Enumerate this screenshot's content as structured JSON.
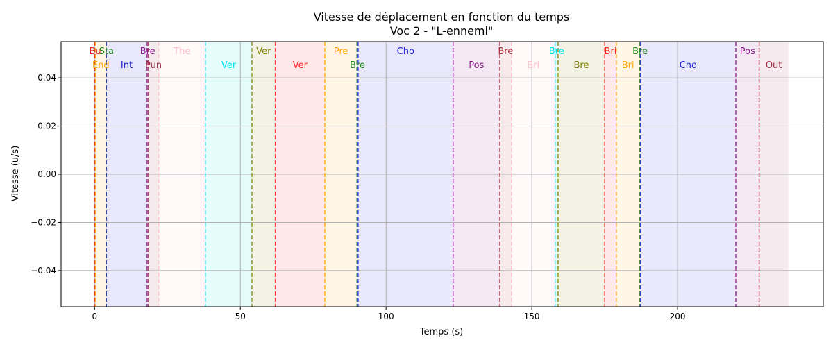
{
  "chart_data": {
    "type": "timeline",
    "title": "Vitesse de déplacement en fonction du temps",
    "subtitle": "Voc 2 - \"L-ennemi\"",
    "xlabel": "Temps (s)",
    "ylabel": "Vitesse (u/s)",
    "xlim": [
      -11.5,
      250
    ],
    "ylim": [
      -0.055,
      0.055
    ],
    "xticks": [
      0,
      50,
      100,
      150,
      200
    ],
    "yticks": [
      0.04,
      0.02,
      0.0,
      -0.02,
      -0.04
    ],
    "ytick_labels": [
      "0.04",
      "0.02",
      "0.00",
      "−0.02",
      "−0.04"
    ],
    "grid": true,
    "segments": [
      {
        "label": "Bu",
        "start": 0,
        "end": 0.4,
        "color": "#e02020",
        "row": 0
      },
      {
        "label": "End",
        "start": 0.3,
        "end": 4,
        "color": "#ffa500",
        "row": 1
      },
      {
        "label": "Sta",
        "start": 4,
        "end": 4.2,
        "color": "#228b22",
        "row": 0
      },
      {
        "label": "Int",
        "start": 4,
        "end": 18,
        "color": "#2020d0",
        "row": 1
      },
      {
        "label": "Bre",
        "start": 18,
        "end": 18.4,
        "color": "#8b1a8b",
        "row": 0
      },
      {
        "label": "Pun",
        "start": 18.4,
        "end": 22,
        "color": "#a0304a",
        "row": 1
      },
      {
        "label": "The",
        "start": 22,
        "end": 38,
        "color": "#ffc0cb",
        "row": 0
      },
      {
        "label": "Ver",
        "start": 38,
        "end": 54,
        "color": "#00e5ee",
        "row": 1
      },
      {
        "label": "Ver",
        "start": 54,
        "end": 62,
        "color": "#808000",
        "row": 0
      },
      {
        "label": "Ver",
        "start": 62,
        "end": 79,
        "color": "#ff2020",
        "row": 1
      },
      {
        "label": "Pre",
        "start": 79,
        "end": 90,
        "color": "#ffa500",
        "row": 0
      },
      {
        "label": "Bre",
        "start": 90,
        "end": 90.4,
        "color": "#228b22",
        "row": 1
      },
      {
        "label": "Cho",
        "start": 90.4,
        "end": 123,
        "color": "#2020d0",
        "row": 0
      },
      {
        "label": "Pos",
        "start": 123,
        "end": 139,
        "color": "#8b1a8b",
        "row": 1
      },
      {
        "label": "Bre",
        "start": 139,
        "end": 143,
        "color": "#b03040",
        "row": 0
      },
      {
        "label": "Bri",
        "start": 143,
        "end": 158,
        "color": "#ffc0cb",
        "row": 1
      },
      {
        "label": "Bre",
        "start": 158,
        "end": 159,
        "color": "#00e5ee",
        "row": 0
      },
      {
        "label": "Bre",
        "start": 159,
        "end": 175,
        "color": "#808000",
        "row": 1
      },
      {
        "label": "Bri",
        "start": 175,
        "end": 179,
        "color": "#ff2020",
        "row": 0
      },
      {
        "label": "Bri",
        "start": 179,
        "end": 187,
        "color": "#ffa500",
        "row": 1
      },
      {
        "label": "Bre",
        "start": 187,
        "end": 187.3,
        "color": "#228b22",
        "row": 0
      },
      {
        "label": "Cho",
        "start": 187.3,
        "end": 220,
        "color": "#2020d0",
        "row": 1
      },
      {
        "label": "Pos",
        "start": 220,
        "end": 228,
        "color": "#8b1a8b",
        "row": 0
      },
      {
        "label": "Out",
        "start": 228,
        "end": 238,
        "color": "#a0304a",
        "row": 1
      }
    ],
    "colors": {
      "frame": "#000000",
      "grid": "#b0b0b0"
    }
  }
}
